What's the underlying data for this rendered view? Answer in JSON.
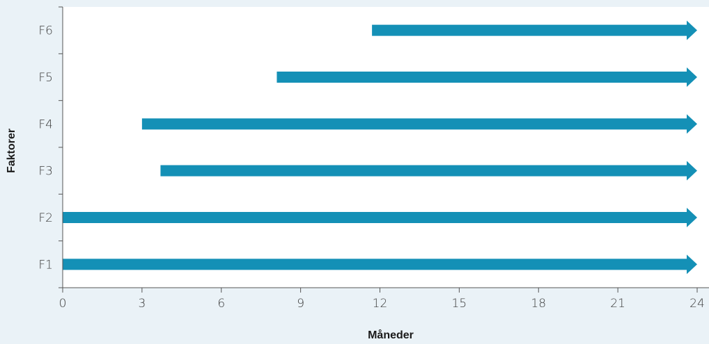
{
  "chart_data": {
    "type": "bar",
    "orientation": "horizontal",
    "title": "",
    "xlabel": "Måneder",
    "ylabel": "Faktorer",
    "xlim": [
      0,
      24
    ],
    "xticks": [
      0,
      3,
      6,
      9,
      12,
      15,
      18,
      21,
      24
    ],
    "categories": [
      "F1",
      "F2",
      "F3",
      "F4",
      "F5",
      "F6"
    ],
    "ranges": [
      {
        "category": "F1",
        "start": 0,
        "end": 24
      },
      {
        "category": "F2",
        "start": 0,
        "end": 24
      },
      {
        "category": "F3",
        "start": 3.7,
        "end": 24
      },
      {
        "category": "F4",
        "start": 3,
        "end": 24
      },
      {
        "category": "F5",
        "start": 8.1,
        "end": 24
      },
      {
        "category": "F6",
        "start": 11.7,
        "end": 24
      }
    ],
    "bar_end_marker": "arrow",
    "grid": false,
    "colors": {
      "background": "#eaf2f7",
      "plot_background": "#ffffff",
      "bar": "#1490b6",
      "axis": "#555555"
    }
  }
}
